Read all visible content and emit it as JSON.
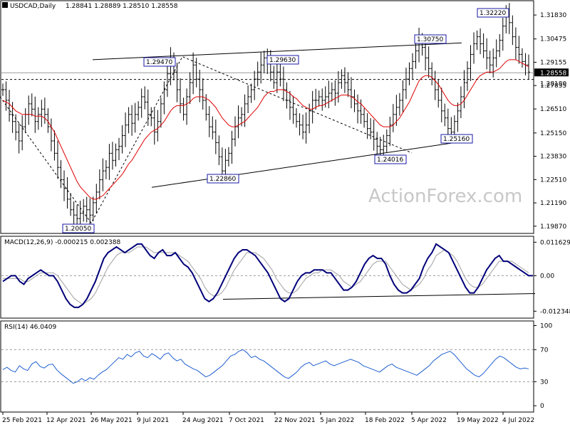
{
  "header": {
    "symbol_label": "USDCAD,Daily",
    "ohlc": "1.28841 1.28889 1.28510 1.28558"
  },
  "watermark": "ActionForex.com",
  "chart_data": [
    {
      "type": "candlestick",
      "title": "USDCAD,Daily",
      "price_ticks": [
        "1.31830",
        "1.30475",
        "1.29155",
        "1.27835",
        "1.26510",
        "1.25150",
        "1.23830",
        "1.22510",
        "1.21190",
        "1.19870"
      ],
      "price_tick_values": [
        1.3183,
        1.30475,
        1.29155,
        1.27835,
        1.2651,
        1.2515,
        1.2383,
        1.2251,
        1.2119,
        1.1987
      ],
      "ylim": [
        1.195,
        1.326
      ],
      "current_price_label": "1.28558",
      "dashed_level_label": "1.28180",
      "x_labels": [
        "25 Feb 2021",
        "12 Apr 2021",
        "26 May 2021",
        "9 Jul 2021",
        "24 Aug 2021",
        "7 Oct 2021",
        "22 Nov 2021",
        "5 Jan 2022",
        "18 Feb 2022",
        "5 Apr 2022",
        "19 May 2022",
        "4 Jul 2022"
      ],
      "annotations": [
        {
          "text": "1.32220",
          "value": 1.3222
        },
        {
          "text": "1.30750",
          "value": 1.3075
        },
        {
          "text": "1.29630",
          "value": 1.2963
        },
        {
          "text": "1.29470",
          "value": 1.2947
        },
        {
          "text": "1.25160",
          "value": 1.2516
        },
        {
          "text": "1.24016",
          "value": 1.24016
        },
        {
          "text": "1.22860",
          "value": 1.2286
        },
        {
          "text": "1.20050",
          "value": 1.2005
        }
      ],
      "close_path": [
        1.276,
        1.27,
        1.262,
        1.258,
        1.252,
        1.247,
        1.255,
        1.262,
        1.268,
        1.265,
        1.258,
        1.262,
        1.265,
        1.262,
        1.255,
        1.247,
        1.24,
        1.232,
        1.225,
        1.22,
        1.214,
        1.208,
        1.205,
        1.203,
        1.206,
        1.21,
        1.208,
        1.205,
        1.212,
        1.218,
        1.225,
        1.23,
        1.232,
        1.24,
        1.236,
        1.242,
        1.244,
        1.25,
        1.256,
        1.262,
        1.257,
        1.262,
        1.266,
        1.272,
        1.269,
        1.262,
        1.26,
        1.252,
        1.258,
        1.268,
        1.276,
        1.285,
        1.293,
        1.286,
        1.276,
        1.268,
        1.262,
        1.272,
        1.28,
        1.29,
        1.282,
        1.276,
        1.27,
        1.262,
        1.255,
        1.252,
        1.246,
        1.238,
        1.23,
        1.236,
        1.24,
        1.248,
        1.255,
        1.26,
        1.262,
        1.268,
        1.272,
        1.276,
        1.282,
        1.286,
        1.29,
        1.294,
        1.292,
        1.286,
        1.28,
        1.286,
        1.282,
        1.276,
        1.27,
        1.266,
        1.262,
        1.258,
        1.256,
        1.252,
        1.256,
        1.264,
        1.27,
        1.27,
        1.272,
        1.27,
        1.272,
        1.274,
        1.276,
        1.274,
        1.28,
        1.284,
        1.28,
        1.276,
        1.272,
        1.268,
        1.264,
        1.262,
        1.258,
        1.254,
        1.252,
        1.248,
        1.244,
        1.242,
        1.244,
        1.25,
        1.256,
        1.262,
        1.266,
        1.27,
        1.276,
        1.282,
        1.288,
        1.292,
        1.298,
        1.304,
        1.3,
        1.294,
        1.288,
        1.282,
        1.276,
        1.27,
        1.264,
        1.26,
        1.254,
        1.252,
        1.258,
        1.264,
        1.272,
        1.28,
        1.288,
        1.296,
        1.302,
        1.306,
        1.302,
        1.298,
        1.294,
        1.29,
        1.294,
        1.298,
        1.304,
        1.312,
        1.318,
        1.314,
        1.306,
        1.3,
        1.296,
        1.292,
        1.29,
        1.286
      ],
      "ma_path": [
        1.27,
        1.269,
        1.268,
        1.266,
        1.264,
        1.263,
        1.262,
        1.262,
        1.262,
        1.262,
        1.261,
        1.261,
        1.261,
        1.26,
        1.258,
        1.255,
        1.252,
        1.248,
        1.244,
        1.24,
        1.236,
        1.232,
        1.228,
        1.224,
        1.221,
        1.219,
        1.217,
        1.215,
        1.214,
        1.214,
        1.215,
        1.216,
        1.218,
        1.22,
        1.222,
        1.224,
        1.226,
        1.228,
        1.231,
        1.234,
        1.236,
        1.239,
        1.242,
        1.245,
        1.248,
        1.25,
        1.252,
        1.253,
        1.254,
        1.256,
        1.258,
        1.261,
        1.264,
        1.266,
        1.267,
        1.267,
        1.267,
        1.268,
        1.269,
        1.271,
        1.272,
        1.272,
        1.272,
        1.271,
        1.27,
        1.268,
        1.266,
        1.263,
        1.26,
        1.258,
        1.256,
        1.255,
        1.255,
        1.256,
        1.257,
        1.258,
        1.26,
        1.262,
        1.264,
        1.266,
        1.269,
        1.272,
        1.274,
        1.275,
        1.275,
        1.276,
        1.276,
        1.276,
        1.275,
        1.274,
        1.272,
        1.271,
        1.269,
        1.267,
        1.266,
        1.265,
        1.265,
        1.266,
        1.267,
        1.267,
        1.268,
        1.269,
        1.27,
        1.271,
        1.272,
        1.273,
        1.273,
        1.273,
        1.272,
        1.271,
        1.269,
        1.268,
        1.266,
        1.264,
        1.262,
        1.26,
        1.258,
        1.256,
        1.255,
        1.255,
        1.255,
        1.256,
        1.258,
        1.26,
        1.263,
        1.266,
        1.269,
        1.273,
        1.277,
        1.281,
        1.283,
        1.284,
        1.284,
        1.283,
        1.281,
        1.279,
        1.276,
        1.273,
        1.27,
        1.268,
        1.267,
        1.267,
        1.268,
        1.27,
        1.273,
        1.276,
        1.279,
        1.282,
        1.284,
        1.285,
        1.286,
        1.286,
        1.286,
        1.287,
        1.288,
        1.29,
        1.292,
        1.293,
        1.293,
        1.293,
        1.292,
        1.291,
        1.29,
        1.289
      ]
    },
    {
      "type": "line",
      "title": "MACD(12,26,9) -0.000215 0.002388",
      "ticks": [
        "0.011629",
        "0.00",
        "-0.012348"
      ],
      "tick_values": [
        0.011629,
        0.0,
        -0.012348
      ],
      "ylim": [
        -0.0145,
        0.0132
      ],
      "series": [
        {
          "values": [
            -0.002,
            -0.001,
            0.0,
            0.0,
            -0.002,
            -0.003,
            -0.001,
            0.0,
            0.001,
            0.002,
            0.001,
            0.0,
            0.0,
            -0.002,
            -0.005,
            -0.008,
            -0.01,
            -0.011,
            -0.011,
            -0.01,
            -0.008,
            -0.005,
            -0.002,
            0.002,
            0.006,
            0.008,
            0.009,
            0.01,
            0.009,
            0.008,
            0.009,
            0.01,
            0.011,
            0.011,
            0.009,
            0.007,
            0.006,
            0.008,
            0.009,
            0.007,
            0.007,
            0.008,
            0.006,
            0.004,
            0.003,
            0.001,
            -0.002,
            -0.005,
            -0.008,
            -0.009,
            -0.008,
            -0.006,
            -0.003,
            0.0,
            0.003,
            0.006,
            0.008,
            0.009,
            0.009,
            0.008,
            0.007,
            0.005,
            0.003,
            0.001,
            -0.002,
            -0.005,
            -0.008,
            -0.009,
            -0.008,
            -0.005,
            -0.002,
            0.0,
            0.001,
            0.001,
            0.002,
            0.002,
            0.002,
            0.001,
            0.001,
            -0.001,
            -0.003,
            -0.005,
            -0.005,
            -0.004,
            -0.002,
            0.001,
            0.004,
            0.006,
            0.007,
            0.006,
            0.006,
            0.004,
            0.0,
            -0.003,
            -0.005,
            -0.006,
            -0.006,
            -0.005,
            -0.003,
            -0.001,
            0.003,
            0.006,
            0.008,
            0.011,
            0.01,
            0.009,
            0.008,
            0.005,
            0.002,
            -0.001,
            -0.004,
            -0.006,
            -0.006,
            -0.004,
            -0.001,
            0.002,
            0.004,
            0.006,
            0.007,
            0.005,
            0.005,
            0.004,
            0.003,
            0.002,
            0.001,
            0.0,
            0.0
          ]
        },
        {
          "values": [
            -0.001,
            -0.001,
            -0.001,
            -0.001,
            -0.001,
            -0.002,
            -0.002,
            -0.001,
            0.0,
            0.001,
            0.001,
            0.001,
            0.001,
            0.0,
            -0.002,
            -0.004,
            -0.006,
            -0.008,
            -0.009,
            -0.01,
            -0.009,
            -0.008,
            -0.006,
            -0.003,
            0.0,
            0.003,
            0.005,
            0.007,
            0.008,
            0.008,
            0.008,
            0.009,
            0.01,
            0.01,
            0.01,
            0.009,
            0.008,
            0.008,
            0.008,
            0.008,
            0.008,
            0.008,
            0.007,
            0.006,
            0.005,
            0.003,
            0.001,
            -0.001,
            -0.004,
            -0.006,
            -0.007,
            -0.007,
            -0.006,
            -0.004,
            -0.001,
            0.002,
            0.004,
            0.006,
            0.008,
            0.008,
            0.008,
            0.007,
            0.006,
            0.004,
            0.002,
            -0.001,
            -0.003,
            -0.005,
            -0.006,
            -0.006,
            -0.005,
            -0.003,
            -0.001,
            0.0,
            0.001,
            0.001,
            0.002,
            0.002,
            0.002,
            0.001,
            0.0,
            -0.002,
            -0.003,
            -0.004,
            -0.003,
            -0.002,
            0.0,
            0.002,
            0.004,
            0.005,
            0.005,
            0.005,
            0.003,
            0.001,
            -0.001,
            -0.003,
            -0.004,
            -0.005,
            -0.004,
            -0.003,
            -0.001,
            0.002,
            0.004,
            0.007,
            0.008,
            0.009,
            0.008,
            0.007,
            0.005,
            0.002,
            -0.001,
            -0.003,
            -0.004,
            -0.004,
            -0.003,
            -0.001,
            0.001,
            0.003,
            0.005,
            0.005,
            0.005,
            0.005,
            0.004,
            0.003,
            0.002,
            0.001
          ]
        }
      ]
    },
    {
      "type": "line",
      "title": "RSI(14) 46.0409",
      "ticks": [
        "100",
        "70",
        "30",
        "0"
      ],
      "tick_values": [
        100,
        70,
        30,
        0
      ],
      "ylim": [
        -7,
        104
      ],
      "series": [
        {
          "values": [
            45,
            48,
            44,
            42,
            50,
            46,
            44,
            52,
            55,
            49,
            47,
            51,
            52,
            45,
            40,
            36,
            32,
            28,
            30,
            34,
            31,
            35,
            33,
            38,
            42,
            45,
            50,
            55,
            60,
            58,
            64,
            61,
            66,
            68,
            62,
            60,
            65,
            62,
            58,
            64,
            66,
            60,
            56,
            58,
            52,
            49,
            46,
            44,
            40,
            36,
            38,
            42,
            46,
            50,
            56,
            62,
            64,
            68,
            70,
            66,
            60,
            62,
            58,
            56,
            52,
            48,
            44,
            40,
            36,
            34,
            38,
            42,
            48,
            52,
            54,
            50,
            52,
            54,
            56,
            52,
            50,
            52,
            54,
            56,
            58,
            56,
            54,
            50,
            48,
            46,
            44,
            42,
            46,
            50,
            52,
            48,
            46,
            44,
            42,
            40,
            38,
            42,
            46,
            50,
            56,
            60,
            64,
            66,
            68,
            64,
            58,
            52,
            46,
            42,
            38,
            36,
            40,
            46,
            52,
            58,
            62,
            60,
            56,
            52,
            48,
            46,
            47,
            46
          ]
        }
      ]
    }
  ]
}
